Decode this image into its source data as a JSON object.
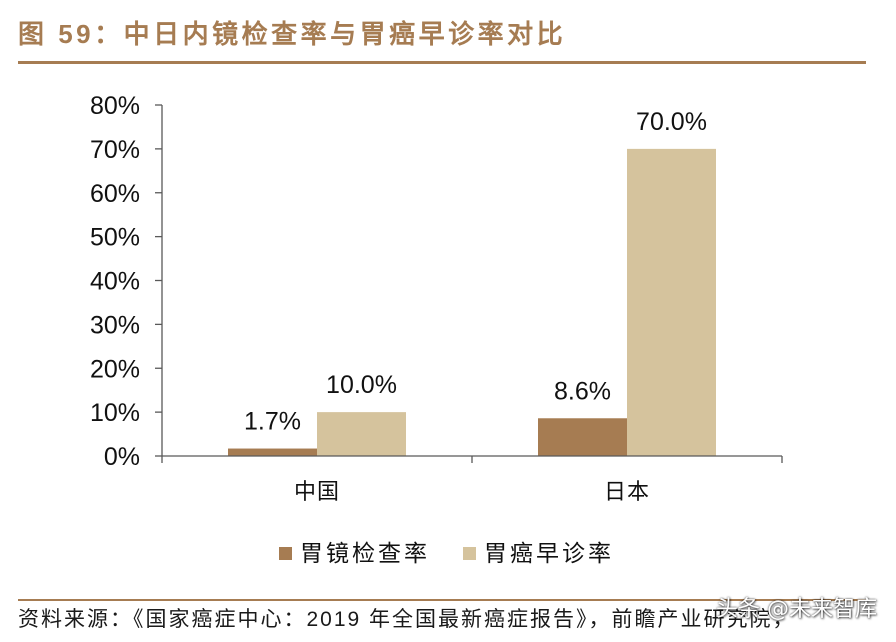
{
  "colors": {
    "accent": "#A67C52",
    "axis": "#595959"
  },
  "chart_data": {
    "type": "bar",
    "title": "图 59：中日内镜检查率与胃癌早诊率对比",
    "categories": [
      "中国",
      "日本"
    ],
    "series": [
      {
        "name": "胃镜检查率",
        "values": [
          1.7,
          8.6
        ],
        "labels": [
          "1.7%",
          "8.6%"
        ],
        "color": "#A67C52"
      },
      {
        "name": "胃癌早诊率",
        "values": [
          10.0,
          70.0
        ],
        "labels": [
          "10.0%",
          "70.0%"
        ],
        "color": "#D5C39D"
      }
    ],
    "ylim": [
      0,
      80
    ],
    "y_ticks": [
      0,
      10,
      20,
      30,
      40,
      50,
      60,
      70,
      80
    ],
    "y_tick_labels": [
      "0%",
      "10%",
      "20%",
      "30%",
      "40%",
      "50%",
      "60%",
      "70%",
      "80%"
    ],
    "grid": false,
    "legend": "bottom"
  },
  "source": "资料来源：《国家癌症中心：2019 年全国最新癌症报告》，前瞻产业研究院，",
  "watermark": "头条 @未来智库"
}
